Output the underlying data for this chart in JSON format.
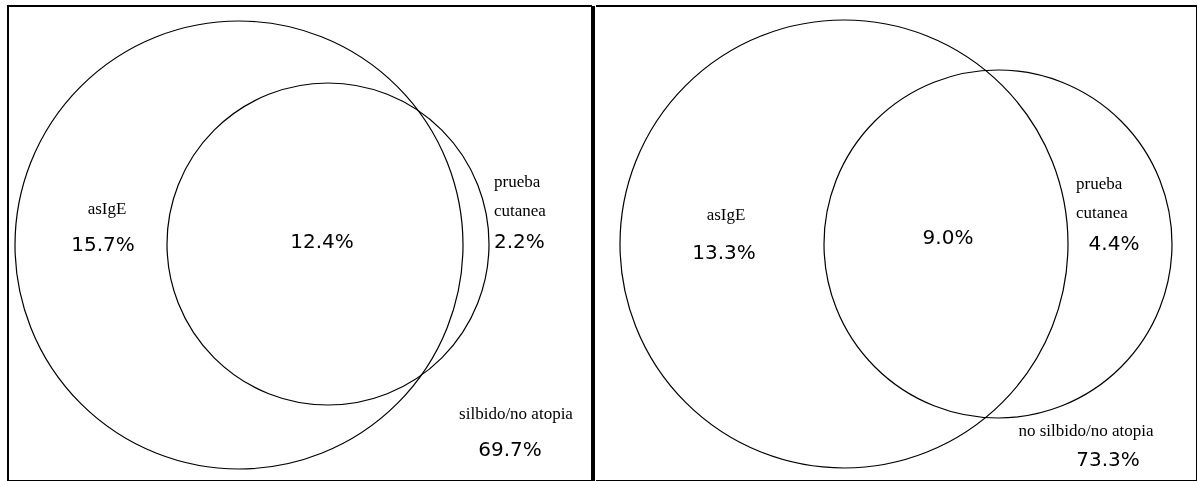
{
  "chart_data": [
    {
      "type": "other",
      "categories": [
        "asIgE",
        null,
        "prueba cutanea",
        "silbido/no atopia"
      ],
      "values": [
        15.7,
        12.4,
        2.2,
        69.7
      ],
      "value_labels": [
        "15.7%",
        "12.4%",
        "2.2%",
        "69.7%"
      ]
    },
    {
      "type": "other",
      "categories": [
        "asIgE",
        null,
        "prueba cutanea",
        "no silbido/no atopia"
      ],
      "values": [
        13.3,
        9.0,
        4.4,
        73.3
      ],
      "value_labels": [
        "13.3%",
        "9.0%",
        "4.4%",
        "73.3%"
      ]
    }
  ]
}
